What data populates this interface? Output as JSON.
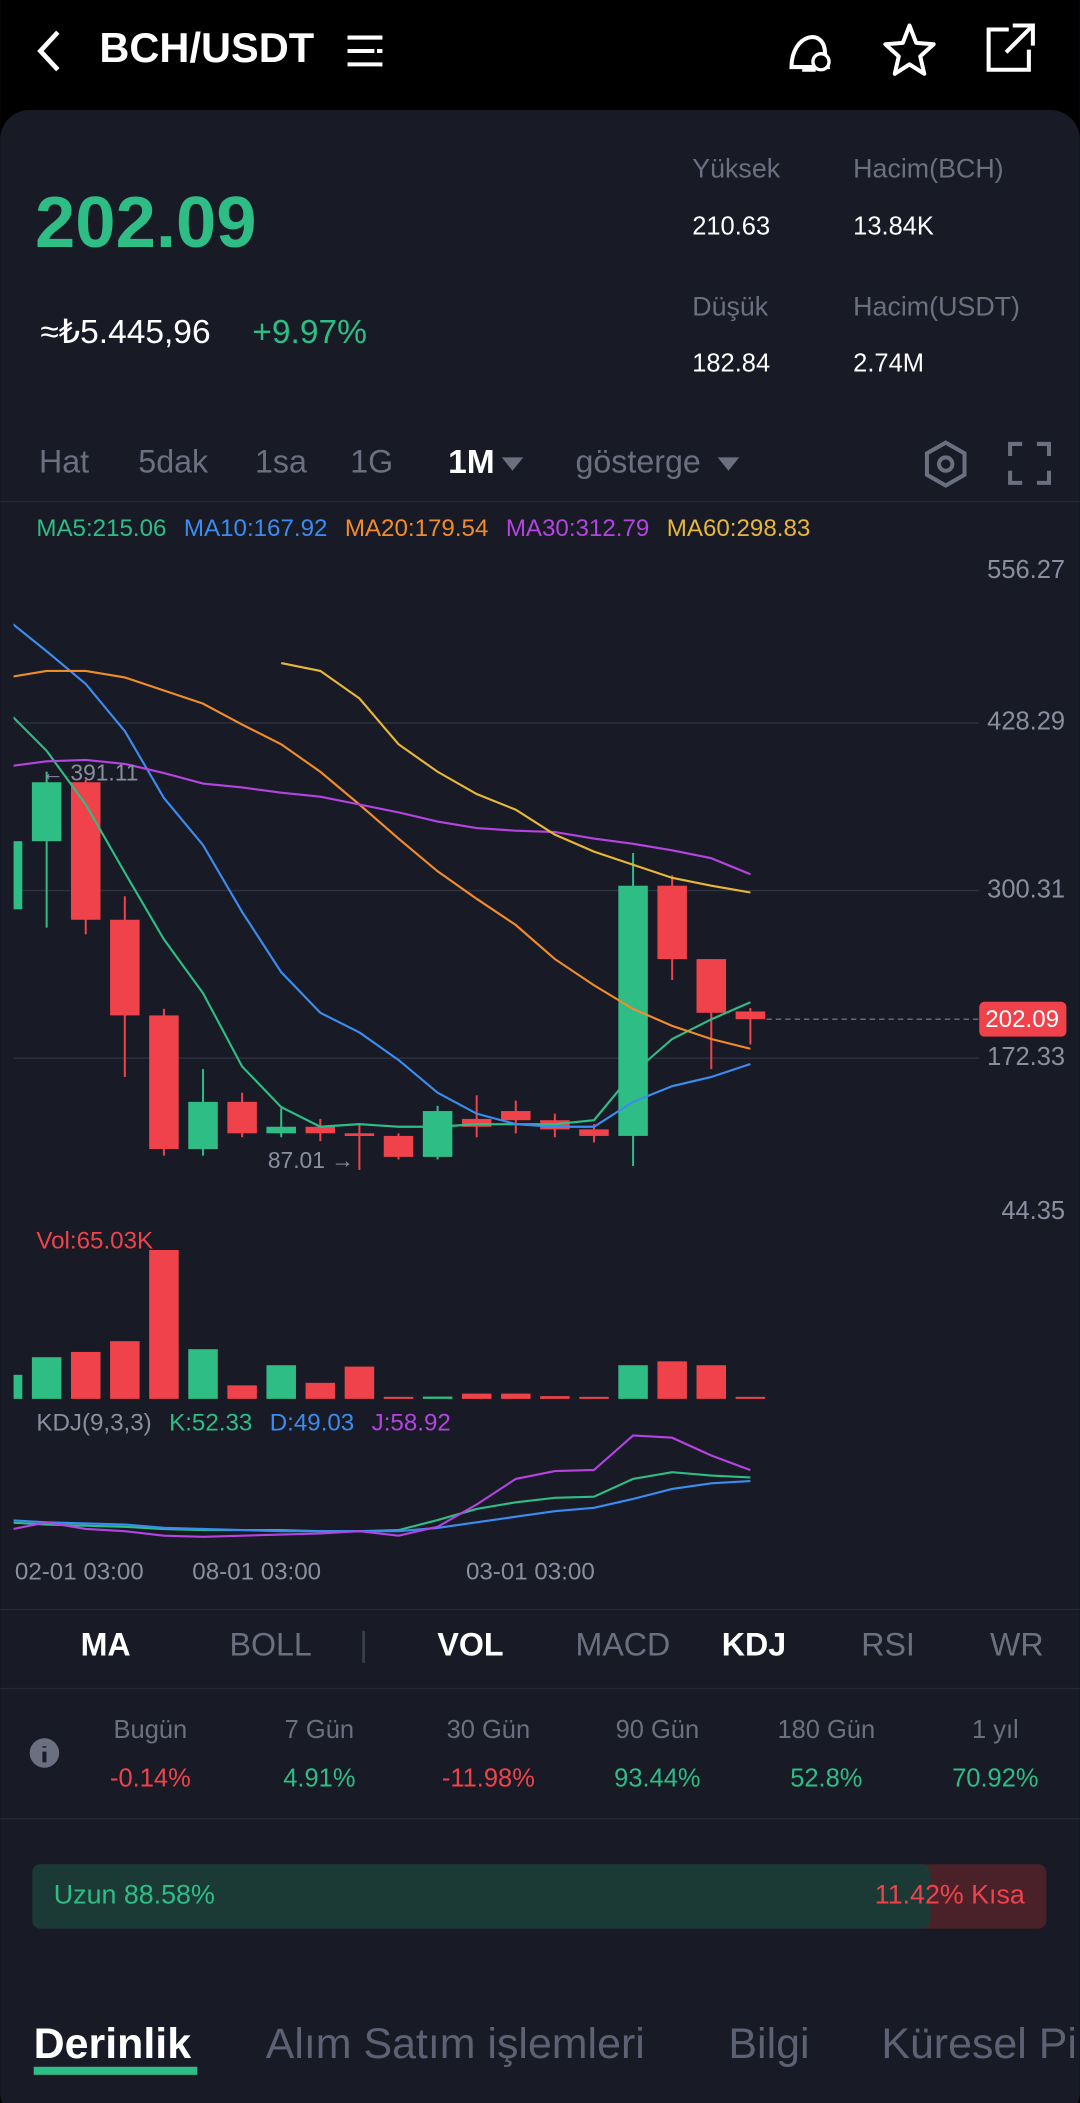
{
  "header": {
    "title": "BCH/USDT"
  },
  "ticker": {
    "price": "202.09",
    "fiat": "≈₺5.445,96",
    "change": "+9.97%",
    "stats": [
      {
        "label": "Yüksek",
        "value": "210.63"
      },
      {
        "label": "Hacim(BCH)",
        "value": "13.84K"
      },
      {
        "label": "Düşük",
        "value": "182.84"
      },
      {
        "label": "Hacim(USDT)",
        "value": "2.74M"
      }
    ]
  },
  "timeframes": [
    "Hat",
    "5dak",
    "1sa",
    "1G",
    "1M",
    "gösterge"
  ],
  "indicator_tabs": [
    "MA",
    "BOLL",
    "VOL",
    "MACD",
    "KDJ",
    "RSI",
    "WR"
  ],
  "performance": [
    {
      "label": "Bugün",
      "value": "-0.14%",
      "color": "#f0424a"
    },
    {
      "label": "7 Gün",
      "value": "4.91%",
      "color": "#2ebd85"
    },
    {
      "label": "30 Gün",
      "value": "-11.98%",
      "color": "#f0424a"
    },
    {
      "label": "90 Gün",
      "value": "93.44%",
      "color": "#2ebd85"
    },
    {
      "label": "180 Gün",
      "value": "52.8%",
      "color": "#2ebd85"
    },
    {
      "label": "1 yıl",
      "value": "70.92%",
      "color": "#2ebd85"
    }
  ],
  "long_short": {
    "long": 88.58,
    "long_label": "Uzun 88.58%",
    "short_label": "11.42% Kısa"
  },
  "bottom_tabs": [
    "Derinlik",
    "Alım Satım işlemleri",
    "Bilgi",
    "Küresel Pi"
  ],
  "chart_data": {
    "type": "candlestick",
    "x": [
      "02-01 03:00",
      null,
      null,
      null,
      null,
      "08-01 03:00",
      null,
      null,
      null,
      null,
      null,
      null,
      "03-01 03:00",
      null,
      null,
      null,
      null,
      null,
      null,
      null
    ],
    "open": [
      286,
      338,
      383,
      278,
      205,
      103,
      139,
      115,
      120,
      115,
      113,
      97,
      126,
      132,
      125,
      118,
      113,
      304,
      248,
      208
    ],
    "high": [
      340,
      391.11,
      385,
      296,
      210,
      164,
      146,
      134,
      126,
      122,
      115,
      136,
      144,
      140,
      130,
      122,
      329,
      312,
      248,
      210.63
    ],
    "low": [
      275,
      272,
      267,
      158,
      98,
      98,
      112,
      112,
      109,
      87.01,
      95,
      95,
      112,
      115,
      112,
      108,
      90,
      232,
      164,
      182.84
    ],
    "close": [
      338,
      383,
      278,
      205,
      103,
      139,
      115,
      120,
      115,
      113,
      97,
      132,
      120,
      125,
      118,
      113,
      304,
      248,
      207,
      202.09
    ],
    "up_color": "#2ebd85",
    "down_color": "#f0424a",
    "ylim": [
      44.35,
      556.27
    ],
    "yticks": [
      44.35,
      172.33,
      300.31,
      428.29,
      556.27
    ],
    "last_price_label": "202.09",
    "annotations": [
      {
        "text": "← 391.11",
        "index": 1
      },
      {
        "text": "87.01 →",
        "index": 9
      }
    ],
    "ma": [
      {
        "label": "MA5:215.06",
        "color": "#2ebd85",
        "values": [
          437,
          407,
          366,
          314,
          263,
          222,
          166,
          135,
          120,
          122,
          120,
          120,
          122,
          122,
          122,
          125,
          161,
          187,
          202,
          215.06
        ]
      },
      {
        "label": "MA10:167.92",
        "color": "#3b8cf0",
        "values": [
          507,
          483,
          458,
          422,
          371,
          335,
          284,
          238,
          207,
          192,
          171,
          146,
          130,
          122,
          120,
          120,
          139,
          151,
          158,
          167.92
        ]
      },
      {
        "label": "MA20:179.54",
        "color": "#f28b2c",
        "values": [
          463,
          468,
          468,
          463,
          453,
          443,
          427,
          412,
          391,
          366,
          340,
          315,
          294,
          274,
          248,
          228,
          210,
          197,
          187,
          179.54
        ]
      },
      {
        "label": "MA30:312.79",
        "color": "#b444e0",
        "values": [
          395,
          399,
          400,
          397,
          390,
          382,
          379,
          375,
          372,
          366,
          360,
          353,
          348,
          346,
          345,
          340,
          336,
          331,
          325,
          312.79
        ]
      },
      {
        "label": "MA60:298.83",
        "color": "#e8b73a",
        "values": [
          null,
          null,
          null,
          null,
          null,
          null,
          null,
          474,
          468,
          447,
          412,
          391,
          374,
          362,
          343,
          330,
          320,
          310,
          304,
          298.83
        ]
      }
    ],
    "volume_label": "Vol:65.03K",
    "volume": [
      10.5,
      18.2,
      20.5,
      25.2,
      65.03,
      21.7,
      5.9,
      14.7,
      7.0,
      14.1,
      0.3,
      1.0,
      2.3,
      2.3,
      1.2,
      0.6,
      14.7,
      16.4,
      14.7,
      0.6
    ],
    "kdj_label": "KDJ(9,3,3)",
    "kdj": [
      {
        "label": "K:52.33",
        "color": "#2ebd85",
        "values": [
          12,
          10,
          9,
          8,
          6,
          5,
          5,
          5,
          4,
          4,
          5,
          14,
          24,
          30,
          34,
          35,
          51,
          57,
          54,
          52.33
        ]
      },
      {
        "label": "D:49.03",
        "color": "#3b8cf0",
        "values": [
          14,
          12,
          11,
          10,
          7,
          6,
          5,
          4,
          4,
          4,
          4,
          7,
          12,
          17,
          22,
          25,
          33,
          42,
          47,
          49.03
        ]
      },
      {
        "label": "J:58.92",
        "color": "#b444e0",
        "values": [
          5,
          12,
          6,
          4,
          0,
          -1,
          0,
          1,
          2,
          4,
          0,
          8,
          28,
          51,
          58,
          59,
          90,
          88,
          72,
          58.92
        ]
      }
    ]
  }
}
